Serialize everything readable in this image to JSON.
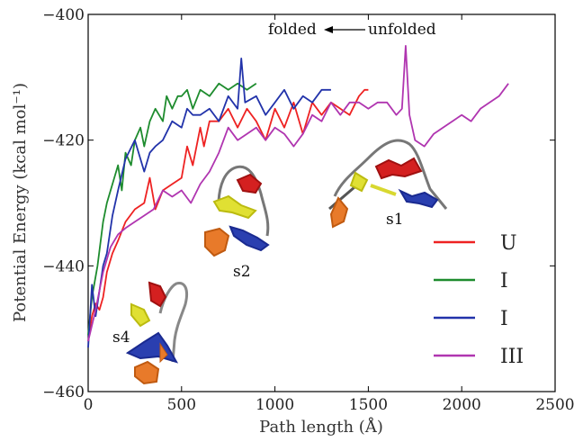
{
  "chart_data": {
    "type": "line",
    "title": "",
    "xlabel": "Path length (Å)",
    "ylabel": "Potential Energy (kcal mol⁻¹)",
    "xlim": [
      0,
      2500
    ],
    "ylim": [
      -460,
      -400
    ],
    "xticks": [
      "0",
      "500",
      "1000",
      "1500",
      "2000",
      "2500"
    ],
    "yticks": [
      "−460",
      "−440",
      "−420",
      "−400"
    ],
    "grid": false,
    "legend_position": "right",
    "annotation": {
      "left": "folded",
      "right": "unfolded"
    },
    "structure_labels": [
      "s1",
      "s2",
      "s4"
    ],
    "series": [
      {
        "name": "U",
        "color": "#ee2222",
        "x": [
          0,
          20,
          40,
          60,
          80,
          100,
          130,
          160,
          200,
          250,
          300,
          330,
          360,
          400,
          450,
          500,
          530,
          560,
          600,
          620,
          650,
          700,
          750,
          800,
          850,
          900,
          950,
          1000,
          1050,
          1100,
          1150,
          1200,
          1250,
          1300,
          1350,
          1400,
          1450,
          1480,
          1500
        ],
        "y": [
          -452,
          -448,
          -446,
          -447,
          -445,
          -441,
          -438,
          -436,
          -433,
          -431,
          -430,
          -426,
          -431,
          -428,
          -427,
          -426,
          -421,
          -424,
          -418,
          -421,
          -417,
          -417,
          -415,
          -418,
          -415,
          -417,
          -420,
          -415,
          -418,
          -414,
          -419,
          -414,
          -416,
          -414,
          -415,
          -416,
          -413,
          -412,
          -412
        ]
      },
      {
        "name": "I",
        "color": "#1e8c2e",
        "x": [
          0,
          20,
          50,
          80,
          100,
          130,
          160,
          180,
          200,
          230,
          250,
          280,
          300,
          330,
          360,
          400,
          420,
          450,
          480,
          500,
          530,
          560,
          600,
          650,
          700,
          750,
          800,
          850,
          900
        ],
        "y": [
          -451,
          -445,
          -440,
          -433,
          -430,
          -427,
          -424,
          -428,
          -422,
          -424,
          -420,
          -418,
          -421,
          -417,
          -415,
          -417,
          -413,
          -415,
          -413,
          -413,
          -412,
          -415,
          -412,
          -413,
          -411,
          -412,
          -411,
          -412,
          -411
        ]
      },
      {
        "name": "I",
        "color": "#2233aa",
        "x": [
          0,
          20,
          40,
          60,
          80,
          100,
          130,
          160,
          200,
          250,
          300,
          330,
          360,
          400,
          450,
          500,
          530,
          560,
          600,
          650,
          700,
          750,
          800,
          820,
          840,
          900,
          950,
          1000,
          1050,
          1100,
          1150,
          1200,
          1250,
          1300
        ],
        "y": [
          -453,
          -443,
          -448,
          -444,
          -440,
          -438,
          -432,
          -428,
          -423,
          -420,
          -425,
          -422,
          -421,
          -420,
          -417,
          -418,
          -415,
          -416,
          -416,
          -415,
          -417,
          -413,
          -415,
          -407,
          -414,
          -413,
          -416,
          -414,
          -412,
          -415,
          -413,
          -414,
          -412,
          -412
        ]
      },
      {
        "name": "III",
        "color": "#b035b0",
        "x": [
          0,
          40,
          80,
          120,
          160,
          200,
          250,
          300,
          350,
          400,
          450,
          500,
          550,
          600,
          650,
          700,
          750,
          800,
          850,
          900,
          950,
          1000,
          1050,
          1100,
          1150,
          1200,
          1250,
          1300,
          1350,
          1400,
          1450,
          1500,
          1550,
          1600,
          1650,
          1680,
          1700,
          1720,
          1750,
          1800,
          1850,
          1900,
          1950,
          2000,
          2050,
          2100,
          2150,
          2200,
          2250
        ],
        "y": [
          -452,
          -447,
          -441,
          -437,
          -435,
          -434,
          -433,
          -432,
          -431,
          -428,
          -429,
          -428,
          -430,
          -427,
          -425,
          -422,
          -418,
          -420,
          -419,
          -418,
          -420,
          -418,
          -419,
          -421,
          -419,
          -416,
          -417,
          -414,
          -416,
          -414,
          -414,
          -415,
          -414,
          -414,
          -416,
          -415,
          -405,
          -416,
          -420,
          -421,
          -419,
          -418,
          -417,
          -416,
          -417,
          -415,
          -414,
          -413,
          -411
        ]
      }
    ]
  }
}
